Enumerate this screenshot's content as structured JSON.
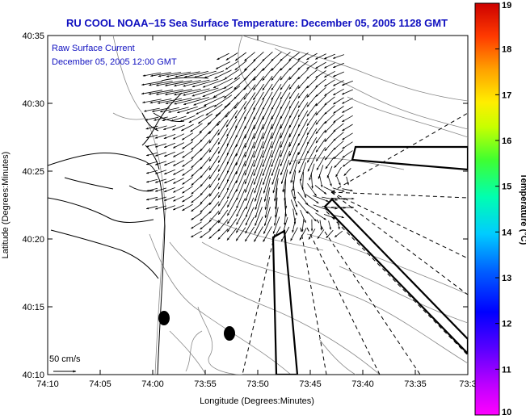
{
  "title": "RU COOL   NOAA–15  Sea Surface Temperature:  December 05, 2005 1128 GMT",
  "inset": {
    "line1": "Raw Surface Current",
    "line2": "December 05, 2005 12:00 GMT"
  },
  "chart_data": {
    "type": "vector-map",
    "title": "RU COOL NOAA-15 Sea Surface Temperature: December 05, 2005 1128 GMT",
    "xlabel": "Longitude (Degrees:Minutes)",
    "ylabel": "Latitude (Degrees:Minutes)",
    "x_ticks": [
      "74:10",
      "74:05",
      "74:00",
      "73:55",
      "73:50",
      "73:45",
      "73:40",
      "73:35",
      "73:3"
    ],
    "y_ticks": [
      "40:35",
      "40:30",
      "40:25",
      "40:20",
      "40:15",
      "40:10"
    ],
    "xlim_minutes_west": [
      10,
      30
    ],
    "ylim_minutes_north": [
      10,
      35
    ],
    "colorbar": {
      "label": "Temperature (°C)",
      "min": 10,
      "max": 19,
      "ticks": [
        "19",
        "18",
        "17",
        "16",
        "15",
        "14",
        "13",
        "12",
        "11",
        "10"
      ]
    },
    "scale_vector": {
      "label": "50 cm/s",
      "speed_cm_s": 50
    },
    "current_field": {
      "description": "Raw surface current vectors, jet flowing south out of the Lower Bay then swinging southeast",
      "region_lon": [
        12,
        28
      ],
      "region_lat": [
        20,
        33
      ]
    }
  }
}
